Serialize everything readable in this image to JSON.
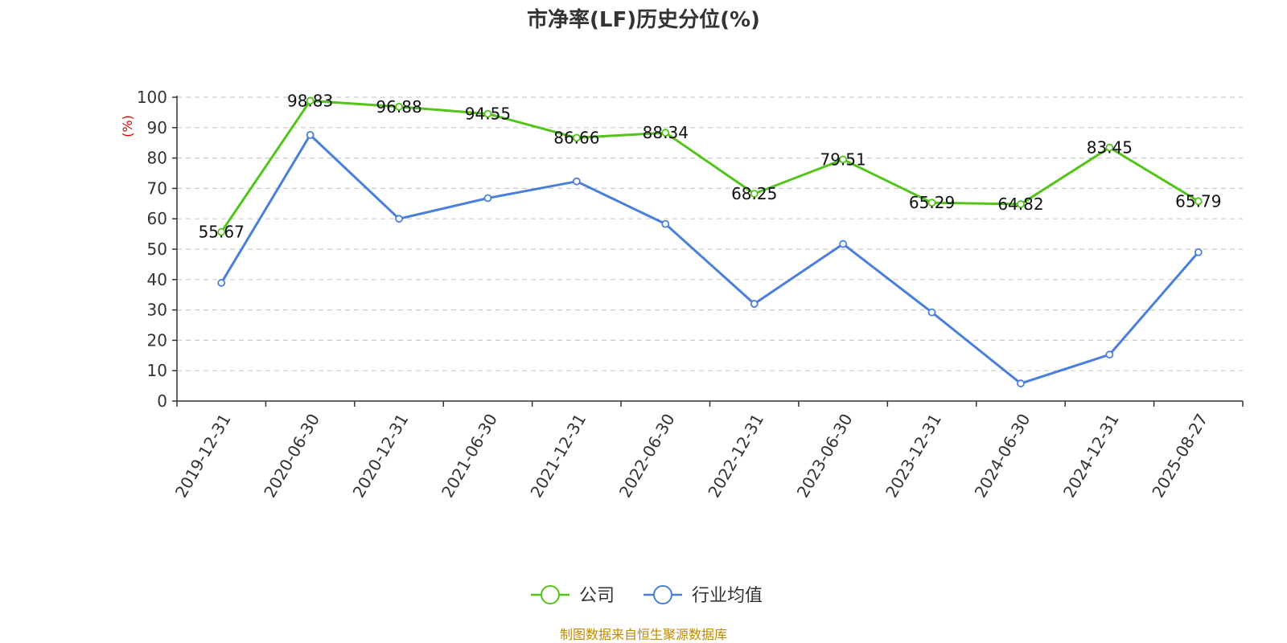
{
  "chart_data": {
    "type": "line",
    "title": "市净率(LF)历史分位(%)",
    "ylabel": "(%)",
    "ylim": [
      0,
      100
    ],
    "yticks": [
      0,
      10,
      20,
      30,
      40,
      50,
      60,
      70,
      80,
      90,
      100
    ],
    "grid": true,
    "legend_position": "bottom-center",
    "categories": [
      "2019-12-31",
      "2020-06-30",
      "2020-12-31",
      "2021-06-30",
      "2021-12-31",
      "2022-06-30",
      "2022-12-31",
      "2023-06-30",
      "2023-12-31",
      "2024-06-30",
      "2024-12-31",
      "2025-08-27"
    ],
    "series": [
      {
        "name": "公司",
        "color": "#52c41a",
        "values": [
          55.67,
          98.83,
          96.88,
          94.55,
          86.66,
          88.34,
          68.25,
          79.51,
          65.29,
          64.82,
          83.45,
          65.79
        ],
        "show_labels": true
      },
      {
        "name": "行业均值",
        "color": "#4a7fdc",
        "values": [
          38.9,
          87.6,
          60.0,
          66.8,
          72.3,
          58.3,
          32.0,
          51.7,
          29.2,
          5.8,
          15.3,
          49.0
        ],
        "show_labels": false
      }
    ]
  },
  "source_text": "制图数据来自恒生聚源数据库"
}
